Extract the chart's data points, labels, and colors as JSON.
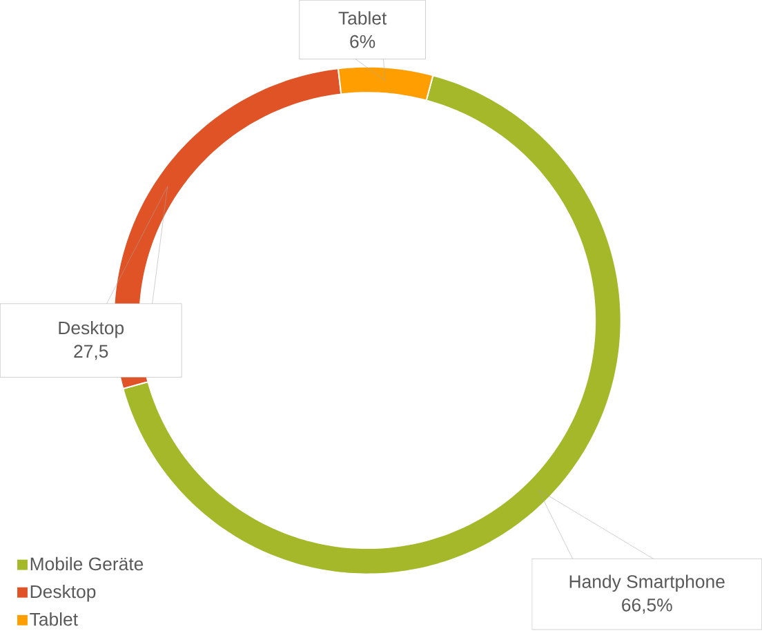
{
  "chart_data": {
    "type": "donut",
    "categories": [
      "Mobile Geräte",
      "Desktop",
      "Tablet"
    ],
    "values": [
      66.5,
      27.5,
      6
    ],
    "colors": [
      "#a5b82a",
      "#e05327",
      "#ff9e00"
    ],
    "value_labels": [
      "66,5%",
      "27,5",
      "6%"
    ],
    "annotations": [
      "Handy Smartphone",
      "Desktop",
      "Tablet"
    ],
    "legend": "bottom left"
  }
}
